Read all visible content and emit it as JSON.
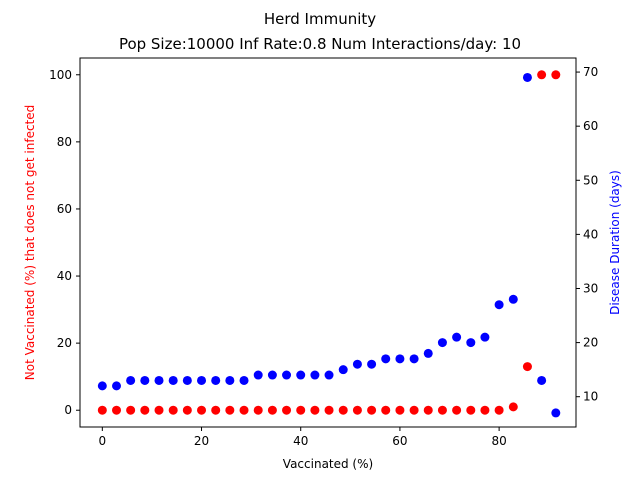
{
  "chart_data": {
    "type": "scatter",
    "title": "Herd Immunity",
    "subtitle": "Pop Size:10000 Inf Rate:0.8 Num Interactions/day: 10",
    "xlabel": "Vaccinated (%)",
    "ylabel_left": "Not Vaccinated (%) that does not get infected",
    "ylabel_right": "Disease Duration (days)",
    "xlim": [
      -4.5,
      95.5
    ],
    "ylim_left": [
      -5,
      105
    ],
    "ylim_right": [
      4.4,
      72.6
    ],
    "x_ticks": [
      0,
      20,
      40,
      60,
      80
    ],
    "y_ticks_left": [
      0,
      20,
      40,
      60,
      80,
      100
    ],
    "y_ticks_right": [
      10,
      20,
      30,
      40,
      50,
      60,
      70
    ],
    "grid": false,
    "series": [
      {
        "axis": "left",
        "color": "#ff0000",
        "x": [
          0,
          2.86,
          5.71,
          8.57,
          11.43,
          14.29,
          17.14,
          20,
          22.86,
          25.71,
          28.57,
          31.43,
          34.29,
          37.14,
          40,
          42.86,
          45.71,
          48.57,
          51.43,
          54.29,
          57.14,
          60,
          62.86,
          65.71,
          68.57,
          71.43,
          74.29,
          77.14,
          80,
          82.86,
          85.71,
          88.57,
          91.43
        ],
        "y": [
          0,
          0,
          0,
          0,
          0,
          0,
          0,
          0,
          0,
          0,
          0,
          0,
          0,
          0,
          0,
          0,
          0,
          0,
          0,
          0,
          0,
          0,
          0,
          0,
          0,
          0,
          0,
          0,
          0,
          1,
          13,
          100,
          100
        ]
      },
      {
        "axis": "right",
        "color": "#0000ff",
        "x": [
          0,
          2.86,
          5.71,
          8.57,
          11.43,
          14.29,
          17.14,
          20,
          22.86,
          25.71,
          28.57,
          31.43,
          34.29,
          37.14,
          40,
          42.86,
          45.71,
          48.57,
          51.43,
          54.29,
          57.14,
          60,
          62.86,
          65.71,
          68.57,
          71.43,
          74.29,
          77.14,
          80,
          82.86,
          85.71,
          88.57,
          91.43
        ],
        "y": [
          12,
          12,
          13,
          13,
          13,
          13,
          13,
          13,
          13,
          13,
          13,
          14,
          14,
          14,
          14,
          14,
          14,
          15,
          16,
          16,
          17,
          17,
          17,
          18,
          20,
          21,
          20,
          21,
          27,
          28,
          69,
          13,
          7
        ]
      }
    ]
  }
}
